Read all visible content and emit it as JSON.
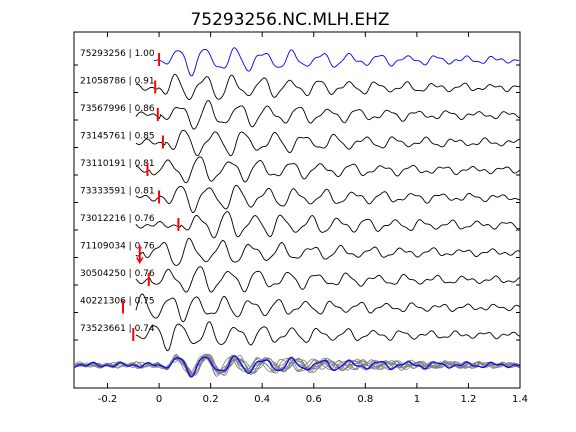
{
  "chart_data": {
    "type": "line",
    "title": "75293256.NC.MLH.EHZ",
    "xlabel": "",
    "ylabel": "",
    "xlim": [
      -0.33,
      1.4
    ],
    "xticks": [
      -0.2,
      0,
      0.2,
      0.4,
      0.6,
      0.8,
      1,
      1.2,
      1.4
    ],
    "xtick_labels": [
      "-0.2",
      "0",
      "0.2",
      "0.4",
      "0.6",
      "0.8",
      "1",
      "1.2",
      "1.4"
    ],
    "grid": false,
    "legend": "none",
    "colors": {
      "reference": "#0000ff",
      "trace": "#000000",
      "pick": "#ff0000",
      "stack": "#808080"
    },
    "traces": [
      {
        "label": "75293256 | 1.00",
        "pick_time": 0.0,
        "pick_dir": "up",
        "ref": true
      },
      {
        "label": "21058786 | 0.91",
        "pick_time": -0.015,
        "pick_dir": "up",
        "ref": false
      },
      {
        "label": "73567996 | 0.86",
        "pick_time": -0.005,
        "pick_dir": "up",
        "ref": false
      },
      {
        "label": "73145761 | 0.85",
        "pick_time": 0.015,
        "pick_dir": "up",
        "ref": false
      },
      {
        "label": "73110191 | 0.81",
        "pick_time": -0.045,
        "pick_dir": "up",
        "ref": false
      },
      {
        "label": "73333591 | 0.81",
        "pick_time": 0.0,
        "pick_dir": "up",
        "ref": false
      },
      {
        "label": "73012216 | 0.76",
        "pick_time": 0.075,
        "pick_dir": "up",
        "ref": false
      },
      {
        "label": "71109034 | 0.76",
        "pick_time": -0.075,
        "pick_dir": "down",
        "ref": false
      },
      {
        "label": "30504250 | 0.76",
        "pick_time": -0.04,
        "pick_dir": "up",
        "ref": false
      },
      {
        "label": "40221306 | 0.75",
        "pick_time": -0.14,
        "pick_dir": "up",
        "ref": false
      },
      {
        "label": "73523661 | 0.74",
        "pick_time": -0.1,
        "pick_dir": "up",
        "ref": false
      }
    ]
  }
}
